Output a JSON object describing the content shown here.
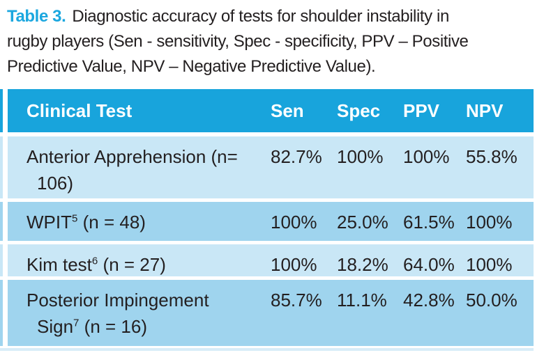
{
  "caption": {
    "label": "Table 3.",
    "line1": "Diagnostic accuracy of tests for shoulder instability in",
    "line2": "rugby players (Sen - sensitivity, Spec - specificity, PPV – Positive",
    "line3": "Predictive Value, NPV – Negative Predictive Value)."
  },
  "colors": {
    "accent": "#1BA7DF",
    "header_bg": "#18A4DC",
    "row_light": "#C9E7F6",
    "row_medium": "#9FD4EE",
    "row_faint": "#D8EDF8",
    "text": "#231F20"
  },
  "table": {
    "columns": [
      "Clinical Test",
      "Sen",
      "Spec",
      "PPV",
      "NPV"
    ],
    "rows": [
      {
        "l1": "Anterior Apprehension (n=",
        "l1sup": "",
        "l1post": "",
        "l2": "106)",
        "l2sup": "",
        "l2post": "",
        "sen": "82.7%",
        "spec": "100%",
        "ppv": "100%",
        "npv": "55.8%"
      },
      {
        "l1": "WPIT",
        "l1sup": "5",
        "l1post": " (n = 48)",
        "l2": "",
        "l2sup": "",
        "l2post": "",
        "sen": "100%",
        "spec": "25.0%",
        "ppv": "61.5%",
        "npv": "100%"
      },
      {
        "l1": "Kim test",
        "l1sup": "6",
        "l1post": " (n = 27)",
        "l2": "",
        "l2sup": "",
        "l2post": "",
        "sen": "100%",
        "spec": "18.2%",
        "ppv": "64.0%",
        "npv": "100%"
      },
      {
        "l1": "Posterior Impingement",
        "l1sup": "",
        "l1post": "",
        "l2": "Sign",
        "l2sup": "7",
        "l2post": " (n = 16)",
        "sen": "85.7%",
        "spec": "11.1%",
        "ppv": "42.8%",
        "npv": "50.0%"
      }
    ]
  }
}
